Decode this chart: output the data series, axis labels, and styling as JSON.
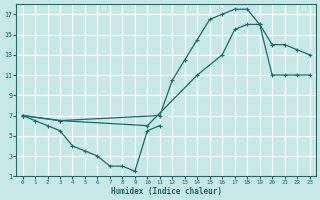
{
  "xlabel": "Humidex (Indice chaleur)",
  "bg_color": "#c8e8e8",
  "grid_color": "#ffffff",
  "line_color": "#1a6b6b",
  "xlim": [
    -0.5,
    23.5
  ],
  "ylim": [
    1,
    18
  ],
  "xticks": [
    0,
    1,
    2,
    3,
    4,
    5,
    6,
    7,
    8,
    9,
    10,
    11,
    12,
    13,
    14,
    15,
    16,
    17,
    18,
    19,
    20,
    21,
    22,
    23
  ],
  "yticks": [
    1,
    3,
    5,
    7,
    9,
    11,
    13,
    15,
    17
  ],
  "line1_x": [
    0,
    1,
    2,
    3,
    4,
    5,
    6,
    7,
    8,
    9,
    10,
    11
  ],
  "line1_y": [
    7,
    6.5,
    6,
    5.5,
    4,
    3.5,
    3,
    2,
    2,
    1.5,
    5.5,
    6
  ],
  "line2_x": [
    0,
    3,
    11,
    12,
    13,
    14,
    15,
    16,
    17,
    18,
    19,
    20,
    21,
    22,
    23
  ],
  "line2_y": [
    7,
    6.5,
    7,
    10.5,
    12.5,
    14.5,
    16.5,
    17,
    17.5,
    17.5,
    16,
    14,
    14,
    13.5,
    13
  ],
  "line3_x": [
    0,
    3,
    10,
    14,
    16,
    17,
    18,
    19,
    20,
    21,
    22,
    23
  ],
  "line3_y": [
    7,
    6.5,
    6,
    11,
    13,
    15.5,
    16,
    16,
    11,
    11,
    11,
    11
  ]
}
